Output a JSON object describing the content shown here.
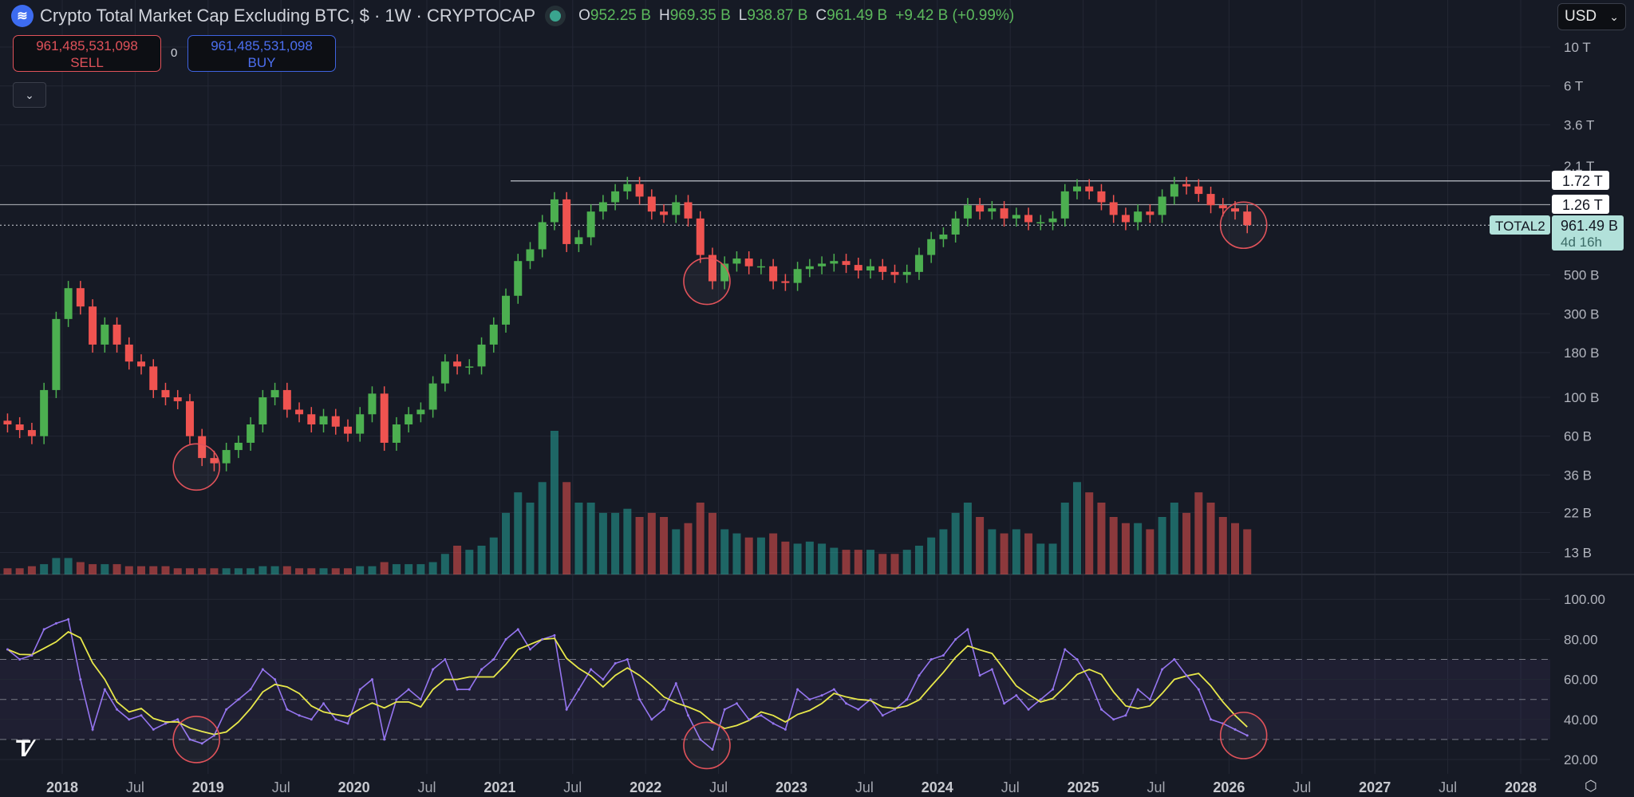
{
  "header": {
    "title": "Crypto Total Market Cap Excluding BTC, $ · 1W · CRYPTOCAP",
    "logo_icon": "cryptocap-logo-icon",
    "ohlc": {
      "o_label": "O",
      "o": "952.25 B",
      "h_label": "H",
      "h": "969.35 B",
      "l_label": "L",
      "l": "938.87 B",
      "c_label": "C",
      "c": "961.49 B",
      "change": "+9.42 B (+0.99%)"
    }
  },
  "trade": {
    "sell_price": "961,485,531,098",
    "sell_label": "SELL",
    "buy_price": "961,485,531,098",
    "buy_label": "BUY",
    "spread": "0"
  },
  "currency": {
    "selected": "USD"
  },
  "price_labels": {
    "level1": "1.72 T",
    "level2": "1.26 T",
    "symbol": "TOTAL2",
    "last": "961.49 B",
    "countdown": "4d 16h"
  },
  "colors": {
    "up": "#4caf50",
    "down": "#ef5350",
    "vol_up": "#26a69a",
    "vol_down": "#ef5350",
    "rsi": "#9575f0",
    "rsi_ma": "#e8e84a",
    "annotation": "#e0525a",
    "last_price": "#b2e1da"
  },
  "chart_data": {
    "type": "candlestick",
    "title": "Crypto Total Market Cap Excluding BTC",
    "interval": "1W",
    "start_month": "2017-08",
    "closes_billion": [
      70,
      65,
      60,
      110,
      280,
      420,
      330,
      200,
      260,
      200,
      160,
      150,
      110,
      100,
      95,
      60,
      45,
      42,
      50,
      55,
      70,
      100,
      110,
      85,
      80,
      70,
      78,
      68,
      62,
      80,
      105,
      55,
      70,
      80,
      85,
      120,
      160,
      150,
      150,
      200,
      260,
      380,
      600,
      700,
      1000,
      1350,
      750,
      820,
      1150,
      1300,
      1500,
      1650,
      1400,
      1150,
      1100,
      1300,
      1050,
      650,
      460,
      580,
      620,
      560,
      560,
      460,
      450,
      540,
      560,
      580,
      600,
      570,
      530,
      560,
      520,
      500,
      520,
      650,
      800,
      850,
      1050,
      1250,
      1150,
      1200,
      1050,
      1100,
      1000,
      1000,
      1050,
      1500,
      1600,
      1500,
      1300,
      1100,
      1000,
      1150,
      1100,
      1400,
      1650,
      1600,
      1450,
      1250,
      1200,
      1150,
      961.49
    ],
    "volume_relative": [
      3,
      3,
      4,
      5,
      8,
      8,
      6,
      5,
      5,
      5,
      4,
      4,
      4,
      4,
      3,
      3,
      3,
      3,
      3,
      3,
      3,
      4,
      4,
      4,
      3,
      3,
      3,
      3,
      3,
      4,
      4,
      6,
      5,
      5,
      5,
      6,
      10,
      14,
      12,
      14,
      18,
      30,
      40,
      35,
      45,
      70,
      45,
      35,
      35,
      30,
      30,
      32,
      28,
      30,
      28,
      22,
      25,
      35,
      30,
      22,
      20,
      18,
      18,
      20,
      16,
      15,
      16,
      15,
      13,
      12,
      12,
      12,
      10,
      10,
      12,
      14,
      18,
      22,
      30,
      35,
      28,
      22,
      20,
      22,
      20,
      15,
      15,
      35,
      45,
      40,
      35,
      28,
      25,
      25,
      22,
      28,
      35,
      30,
      40,
      35,
      28,
      25,
      22
    ],
    "rsi": [
      75,
      70,
      72,
      85,
      88,
      90,
      60,
      35,
      55,
      45,
      40,
      42,
      35,
      38,
      40,
      30,
      28,
      32,
      45,
      50,
      55,
      65,
      60,
      45,
      42,
      40,
      48,
      40,
      38,
      55,
      60,
      30,
      50,
      55,
      50,
      65,
      70,
      55,
      55,
      65,
      70,
      80,
      85,
      75,
      80,
      82,
      45,
      55,
      65,
      60,
      68,
      70,
      50,
      40,
      45,
      58,
      42,
      30,
      25,
      45,
      48,
      40,
      42,
      38,
      35,
      55,
      50,
      52,
      55,
      48,
      45,
      50,
      42,
      45,
      50,
      62,
      70,
      72,
      80,
      85,
      62,
      65,
      48,
      52,
      45,
      50,
      55,
      75,
      70,
      60,
      45,
      40,
      42,
      55,
      50,
      65,
      70,
      62,
      55,
      40,
      38,
      35,
      32
    ],
    "horizontal_levels_billion": [
      1720,
      1260
    ],
    "price_axis": {
      "scale": "log",
      "ticks": [
        {
          "v": 10000,
          "label": "10 T"
        },
        {
          "v": 6000,
          "label": "6 T"
        },
        {
          "v": 3600,
          "label": "3.6 T"
        },
        {
          "v": 2100,
          "label": "2.1 T"
        },
        {
          "v": 500,
          "label": "500 B"
        },
        {
          "v": 300,
          "label": "300 B"
        },
        {
          "v": 180,
          "label": "180 B"
        },
        {
          "v": 100,
          "label": "100 B"
        },
        {
          "v": 60,
          "label": "60 B"
        },
        {
          "v": 36,
          "label": "36 B"
        },
        {
          "v": 22,
          "label": "22 B"
        },
        {
          "v": 13,
          "label": "13 B"
        }
      ]
    },
    "rsi_axis": {
      "range": [
        20,
        100
      ],
      "ticks": [
        {
          "v": 100,
          "label": "100.00"
        },
        {
          "v": 80,
          "label": "80.00"
        },
        {
          "v": 60,
          "label": "60.00"
        },
        {
          "v": 40,
          "label": "40.00"
        },
        {
          "v": 20,
          "label": "20.00"
        }
      ],
      "bands": [
        70,
        50,
        30
      ]
    },
    "time_axis": [
      {
        "t": 2018,
        "label": "2018",
        "major": true
      },
      {
        "t": 2018.5,
        "label": "Jul"
      },
      {
        "t": 2019,
        "label": "2019",
        "major": true
      },
      {
        "t": 2019.5,
        "label": "Jul"
      },
      {
        "t": 2020,
        "label": "2020",
        "major": true
      },
      {
        "t": 2020.5,
        "label": "Jul"
      },
      {
        "t": 2021,
        "label": "2021",
        "major": true
      },
      {
        "t": 2021.5,
        "label": "Jul"
      },
      {
        "t": 2022,
        "label": "2022",
        "major": true
      },
      {
        "t": 2022.5,
        "label": "Jul"
      },
      {
        "t": 2023,
        "label": "2023",
        "major": true
      },
      {
        "t": 2023.5,
        "label": "Jul"
      },
      {
        "t": 2024,
        "label": "2024",
        "major": true
      },
      {
        "t": 2024.5,
        "label": "Jul"
      },
      {
        "t": 2025,
        "label": "2025",
        "major": true
      },
      {
        "t": 2025.5,
        "label": "Jul"
      },
      {
        "t": 2026,
        "label": "2026",
        "major": true
      },
      {
        "t": 2026.5,
        "label": "Jul"
      },
      {
        "t": 2027,
        "label": "2027",
        "major": true
      },
      {
        "t": 2027.5,
        "label": "Jul"
      },
      {
        "t": 2028,
        "label": "2028",
        "major": true
      }
    ],
    "annotations_circled": [
      {
        "t": 2018.92,
        "price": 40,
        "rsi": 30
      },
      {
        "t": 2022.42,
        "price": 460,
        "rsi": 27
      },
      {
        "t": 2026.1,
        "price": 961.49,
        "rsi": 32
      }
    ]
  }
}
